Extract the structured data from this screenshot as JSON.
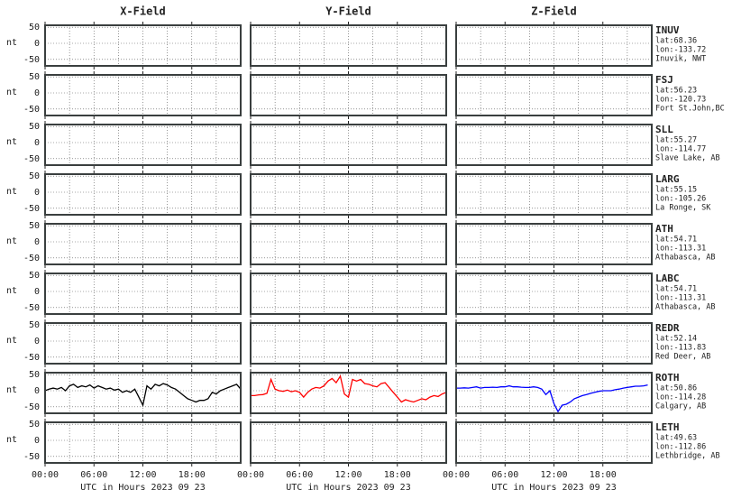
{
  "chart_data": {
    "type": "line",
    "columns": [
      "X-Field",
      "Y-Field",
      "Z-Field"
    ],
    "ylabel": "nt",
    "xlabel": "UTC in Hours  2023 09 23",
    "xlim": [
      0,
      24
    ],
    "xticks": [
      {
        "value": 0,
        "label": "00:00"
      },
      {
        "value": 6,
        "label": "06:00"
      },
      {
        "value": 12,
        "label": "12:00"
      },
      {
        "value": 18,
        "label": "18:00"
      }
    ],
    "xgrid": [
      3,
      6,
      9,
      12,
      15,
      18,
      21
    ],
    "ylim": [
      -70,
      56
    ],
    "yticks": [
      -50,
      0,
      50
    ],
    "grid": true,
    "stations": [
      {
        "code": "INUV",
        "lat": "lat:68.36",
        "lon": "lon:-133.72",
        "place": "Inuvik, NWT"
      },
      {
        "code": "FSJ",
        "lat": "lat:56.23",
        "lon": "lon:-120.73",
        "place": "Fort St.John,BC"
      },
      {
        "code": "SLL",
        "lat": "lat:55.27",
        "lon": "lon:-114.77",
        "place": "Slave Lake, AB"
      },
      {
        "code": "LARG",
        "lat": "lat:55.15",
        "lon": "lon:-105.26",
        "place": "La Ronge, SK"
      },
      {
        "code": "ATH",
        "lat": "lat:54.71",
        "lon": "lon:-113.31",
        "place": "Athabasca, AB"
      },
      {
        "code": "LABC",
        "lat": "lat:54.71",
        "lon": "lon:-113.31",
        "place": "Athabasca, AB"
      },
      {
        "code": "REDR",
        "lat": "lat:52.14",
        "lon": "lon:-113.83",
        "place": "Red Deer, AB"
      },
      {
        "code": "ROTH",
        "lat": "lat:50.86",
        "lon": "lon:-114.28",
        "place": "Calgary, AB",
        "x": [
          0,
          0.5,
          1,
          1.5,
          2,
          2.5,
          3,
          3.5,
          4,
          4.5,
          5,
          5.5,
          6,
          6.5,
          7,
          7.5,
          8,
          8.5,
          9,
          9.5,
          10,
          10.5,
          11,
          11.5,
          12,
          12.5,
          13,
          13.5,
          14,
          14.5,
          15,
          15.5,
          16,
          16.5,
          17,
          17.5,
          18,
          18.5,
          19,
          19.5,
          20,
          20.5,
          21,
          21.5,
          22,
          22.5,
          23,
          23.5,
          24
        ],
        "series": [
          {
            "color": "#000000",
            "values": [
              0,
              5,
              8,
              5,
              10,
              0,
              15,
              20,
              10,
              15,
              12,
              18,
              8,
              15,
              10,
              5,
              8,
              2,
              5,
              -5,
              0,
              -5,
              5,
              -20,
              -45,
              15,
              5,
              20,
              15,
              22,
              18,
              10,
              5,
              -5,
              -15,
              -25,
              -30,
              -35,
              -30,
              -30,
              -25,
              -5,
              -10,
              0,
              5,
              10,
              15,
              20,
              5
            ]
          },
          {
            "color": "#ff0000",
            "values": [
              -15,
              -15,
              -13,
              -12,
              -8,
              35,
              5,
              0,
              -2,
              2,
              -3,
              0,
              -5,
              -20,
              -5,
              5,
              10,
              8,
              15,
              30,
              38,
              25,
              45,
              -10,
              -20,
              35,
              30,
              35,
              22,
              20,
              15,
              12,
              22,
              25,
              10,
              -5,
              -20,
              -35,
              -28,
              -32,
              -35,
              -30,
              -25,
              -28,
              -20,
              -15,
              -18,
              -10,
              -5
            ]
          },
          {
            "color": "#0000ff",
            "values": [
              8,
              8,
              9,
              8,
              10,
              12,
              8,
              10,
              10,
              11,
              10,
              12,
              12,
              15,
              12,
              12,
              11,
              10,
              10,
              12,
              10,
              5,
              -12,
              0,
              -40,
              -65,
              -45,
              -42,
              -35,
              -25,
              -20,
              -15,
              -12,
              -8,
              -5,
              -2,
              0,
              0,
              0,
              3,
              5,
              8,
              10,
              12,
              14,
              14,
              15,
              18,
              null
            ]
          }
        ]
      },
      {
        "code": "LETH",
        "lat": "lat:49.63",
        "lon": "lon:-112.86",
        "place": "Lethbridge, AB"
      }
    ]
  }
}
